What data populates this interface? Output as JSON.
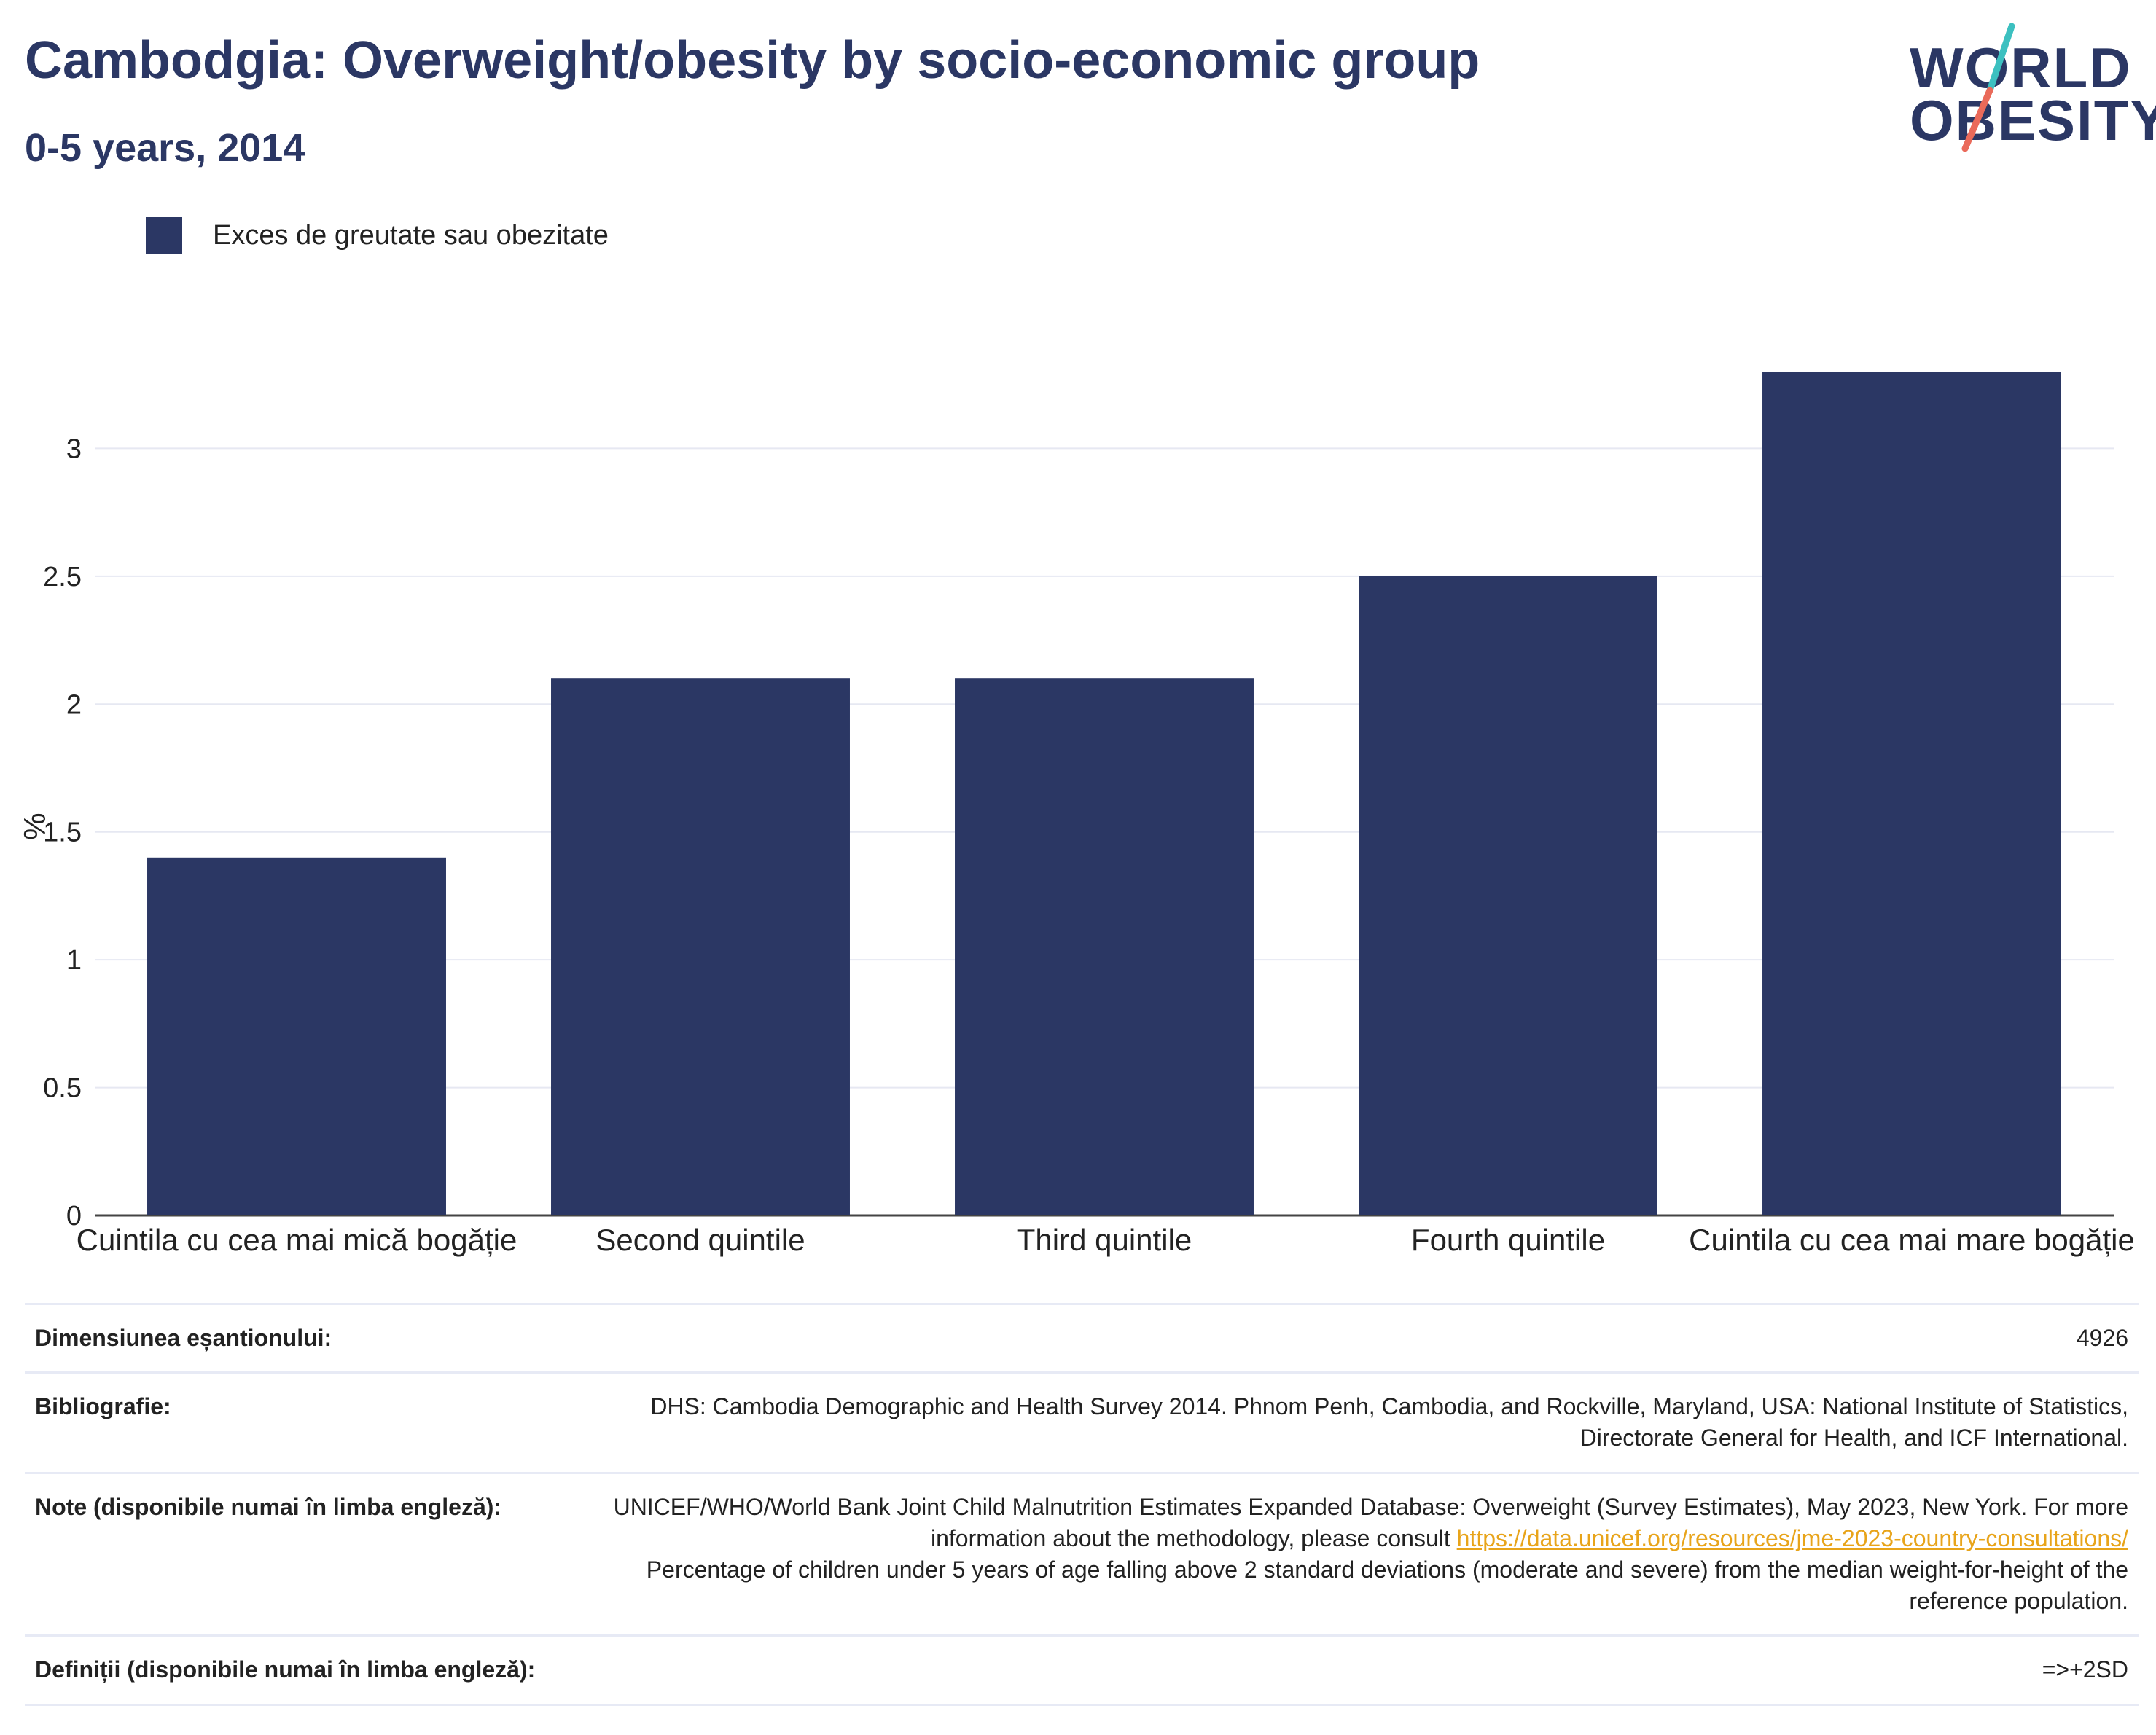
{
  "header": {
    "title": "Cambodgia: Overweight/obesity by socio-economic group",
    "subtitle": "0-5 years, 2014"
  },
  "logo": {
    "line1": "WORLD",
    "line2": "OBESITY"
  },
  "colors": {
    "bar": "#2b3764",
    "title": "#2b3764",
    "grid": "#e6e8f2",
    "link": "#e8a41a",
    "logo_teal": "#3cc0c0",
    "logo_coral": "#ea6a5a"
  },
  "chart_data": {
    "type": "bar",
    "categories": [
      "Cuintila cu cea mai mică bogăție",
      "Second quintile",
      "Third quintile",
      "Fourth quintile",
      "Cuintila cu cea mai mare bogăție"
    ],
    "series": [
      {
        "name": "Exces de greutate sau obezitate",
        "values": [
          1.4,
          2.1,
          2.1,
          2.5,
          3.3
        ]
      }
    ],
    "ylabel": "%",
    "ylim": [
      0,
      3.5
    ],
    "yticks": [
      0,
      0.5,
      1,
      1.5,
      2,
      2.5,
      3
    ],
    "ytick_labels": [
      "0",
      "0.5",
      "1",
      "1.5",
      "2",
      "2.5",
      "3"
    ],
    "grid": true,
    "legend": "top-left"
  },
  "info": {
    "sample_label": "Dimensiunea eșantionului:",
    "sample_value": "4926",
    "bib_label": "Bibliografie:",
    "bib_value": "DHS: Cambodia Demographic and Health Survey 2014. Phnom Penh, Cambodia, and Rockville, Maryland, USA: National Institute of Statistics, Directorate General for Health, and ICF International.",
    "notes_label": "Note (disponibile numai în limba engleză):",
    "notes_text1": "UNICEF/WHO/World Bank Joint Child Malnutrition Estimates Expanded Database: Overweight (Survey Estimates), May 2023, New York. For more information about the methodology, please consult",
    "notes_link": "https://data.unicef.org/resources/jme-2023-country-consultations/",
    "notes_text2": "Percentage of children under 5 years of age falling above 2 standard deviations (moderate and severe) from the median weight-for-height of the reference population.",
    "def_label": "Definiții (disponibile numai în limba engleză):",
    "def_value": "=>+2SD"
  }
}
